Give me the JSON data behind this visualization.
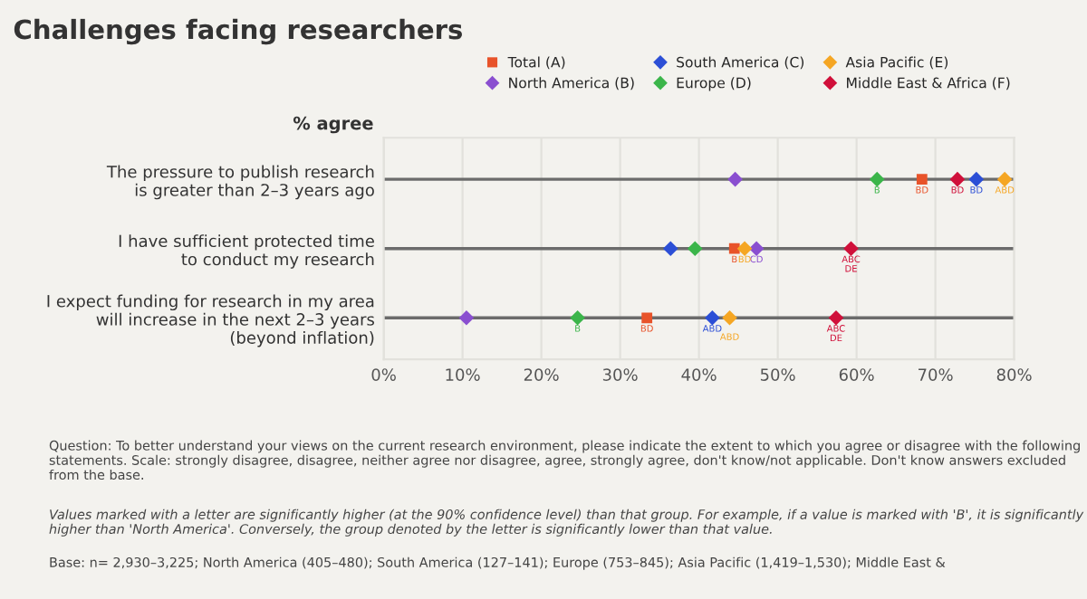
{
  "chart_data": {
    "type": "scatter",
    "orientation": "horizontal",
    "title": "Challenges facing researchers",
    "ylabel": "% agree",
    "categories": [
      "The pressure to publish research\nis greater than 2–3 years ago",
      "I have sufficient protected time\nto conduct my research",
      "I expect funding for research in my area\nwill increase in the next 2–3 years\n(beyond inflation)"
    ],
    "series": [
      {
        "name": "Total (A)",
        "color": "#e8532a",
        "marker": "square",
        "values": [
          68.3,
          44.5,
          33.4
        ],
        "value_labels": [
          "BD",
          "B",
          "BD"
        ]
      },
      {
        "name": "North America (B)",
        "color": "#8a4fd0",
        "marker": "diamond",
        "values": [
          44.6,
          47.3,
          10.5
        ],
        "value_labels": [
          null,
          "CD",
          null
        ]
      },
      {
        "name": "South America (C)",
        "color": "#2c4fd6",
        "marker": "diamond",
        "values": [
          75.2,
          36.4,
          41.7
        ],
        "value_labels": [
          "BD",
          null,
          "ABD"
        ]
      },
      {
        "name": "Europe (D)",
        "color": "#3bb54a",
        "marker": "diamond",
        "values": [
          62.6,
          39.5,
          24.6
        ],
        "value_labels": [
          "B",
          null,
          "B"
        ]
      },
      {
        "name": "Asia Pacific (E)",
        "color": "#f5a623",
        "marker": "diamond",
        "values": [
          78.8,
          45.8,
          43.9
        ],
        "value_labels": [
          "ABD",
          "BD",
          "ABD"
        ]
      },
      {
        "name": "Middle East & Africa (F)",
        "color": "#d0103a",
        "marker": "diamond",
        "values": [
          72.8,
          59.3,
          57.4
        ],
        "value_labels": [
          "BD",
          "ABC\nDE",
          "ABC\nDE"
        ]
      }
    ],
    "xlim": [
      0,
      80
    ],
    "xticks": [
      {
        "value": 0,
        "label": "0%"
      },
      {
        "value": 10,
        "label": "10%"
      },
      {
        "value": 20,
        "label": "20%"
      },
      {
        "value": 30,
        "label": "30%"
      },
      {
        "value": 40,
        "label": "40%"
      },
      {
        "value": 50,
        "label": "50%"
      },
      {
        "value": 60,
        "label": "60%"
      },
      {
        "value": 70,
        "label": "70%"
      },
      {
        "value": 80,
        "label": "80%"
      }
    ],
    "grid": true,
    "legend": "top right",
    "annotations": [
      "Question: To better understand your views on the current research environment, please indicate the extent to which you agree or disagree with the following statements. Scale: strongly disagree, disagree, neither agree nor disagree, agree, strongly agree, don't know/not applicable. Don't know answers excluded from the base.",
      "Values marked with a letter are significantly higher (at the 90% confidence level) than that group. For example, if a value is marked with 'B', it is significantly higher than 'North America'. Conversely, the group denoted by the letter is significantly lower than that value.",
      "Base: n= 2,930–3,225; North America (405–480); South America (127–141); Europe (753–845); Asia Pacific (1,419–1,530); Middle East &"
    ]
  }
}
